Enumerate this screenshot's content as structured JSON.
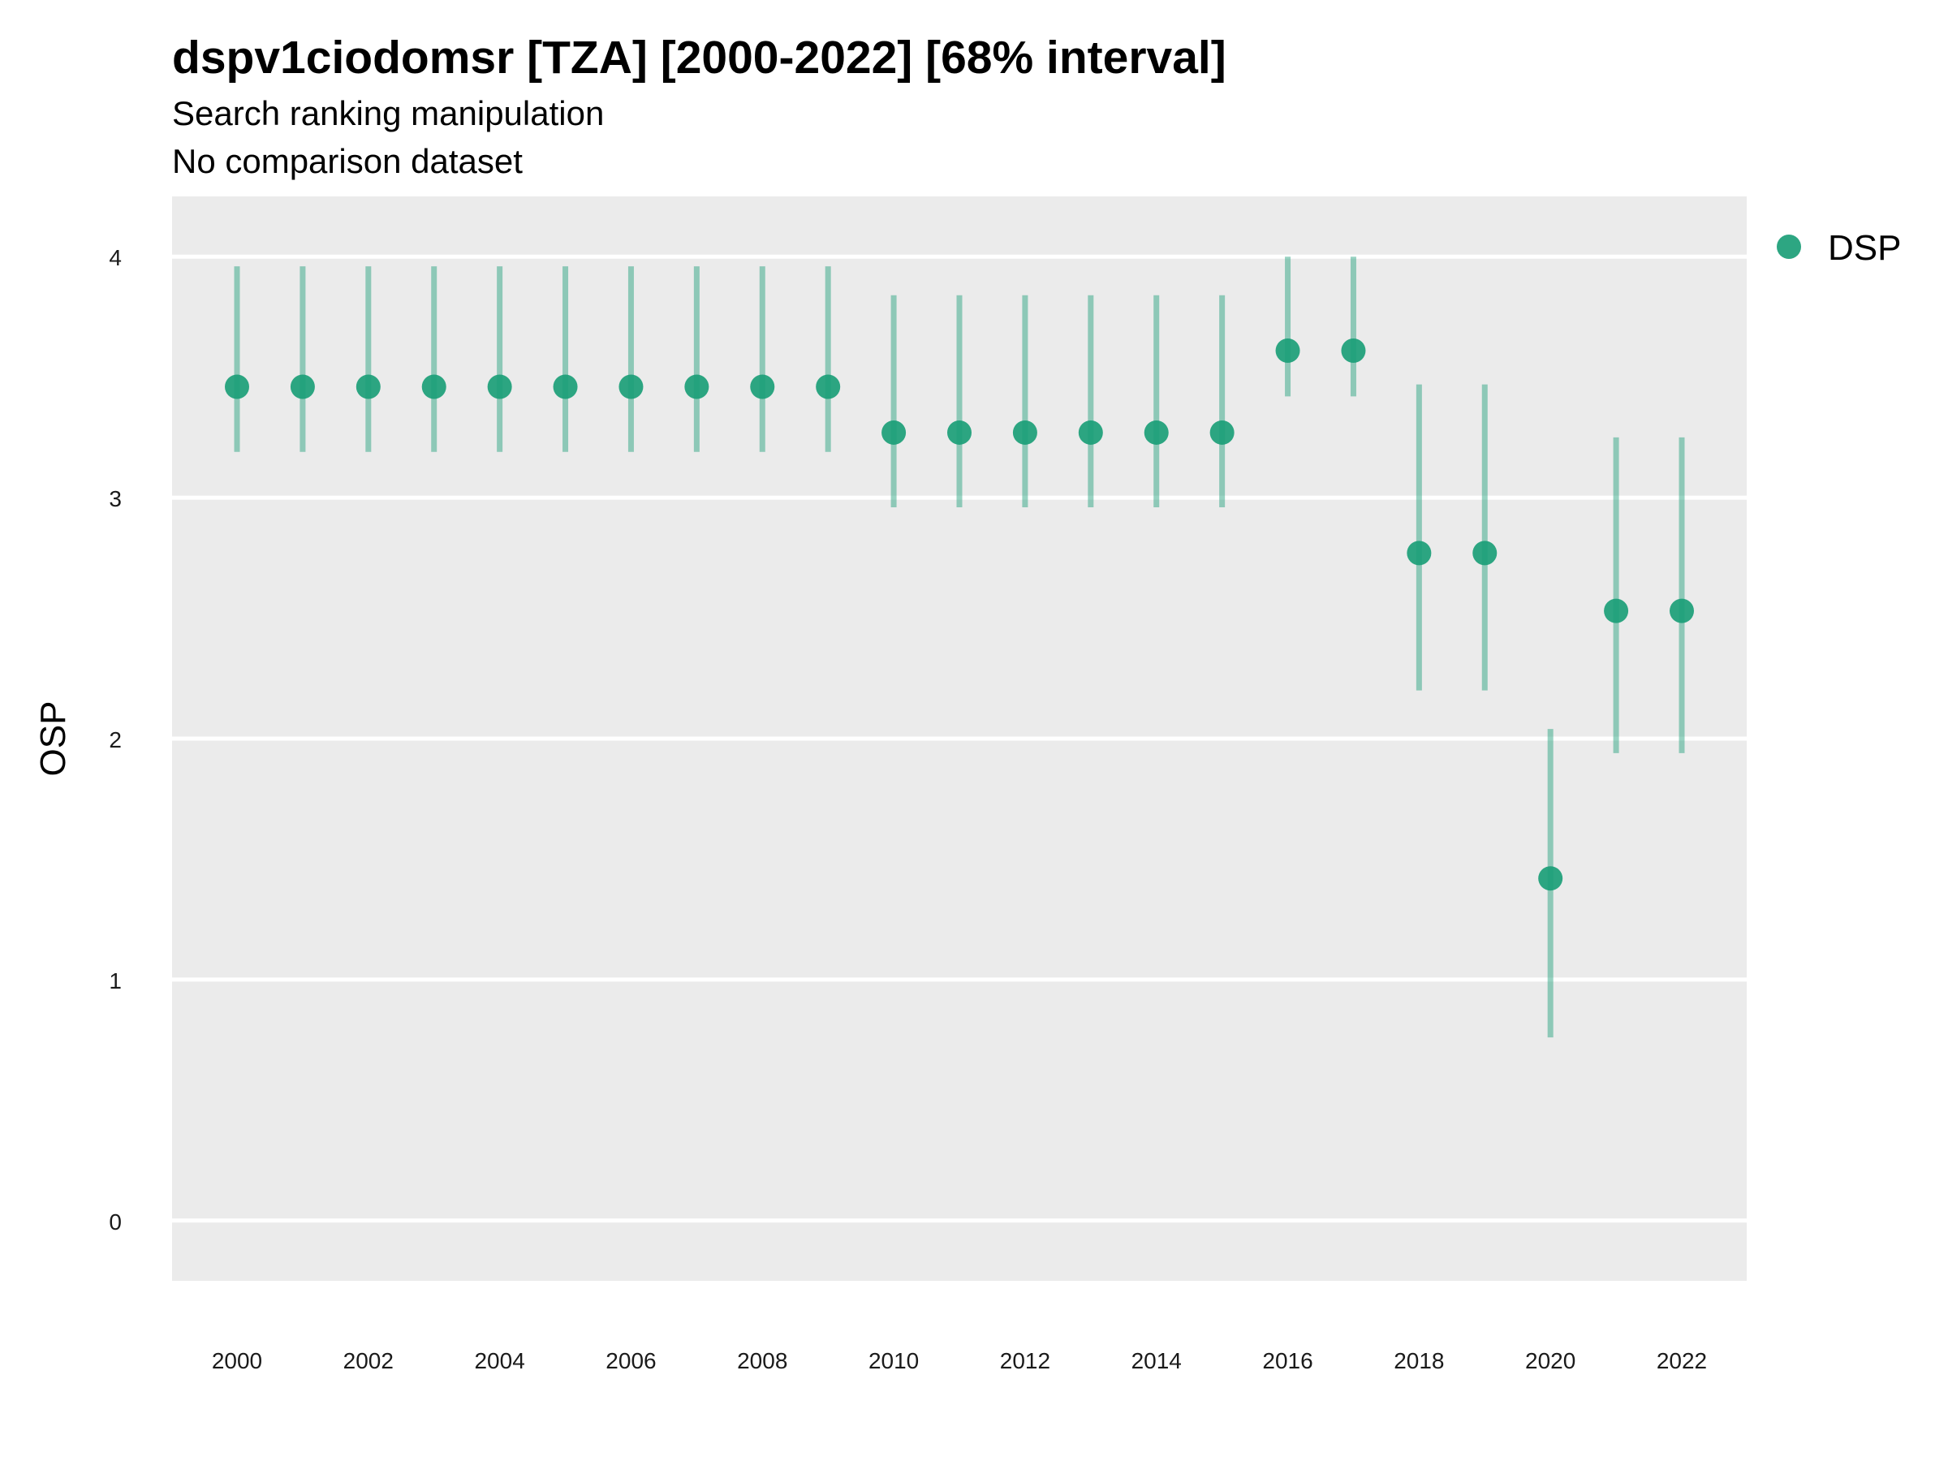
{
  "chart_data": {
    "type": "scatter",
    "title": "dspv1ciodomsr [TZA] [2000-2022] [68% interval]",
    "subtitle": "Search ranking manipulation",
    "caption": "No comparison dataset",
    "xlabel": "",
    "ylabel": "OSP",
    "x_ticks": [
      "2000",
      "2002",
      "2004",
      "2006",
      "2008",
      "2010",
      "2012",
      "2014",
      "2016",
      "2018",
      "2020",
      "2022"
    ],
    "y_ticks": [
      "0",
      "1",
      "2",
      "3",
      "4"
    ],
    "xlim": [
      2000,
      2022
    ],
    "ylim": [
      -0.25,
      4.25
    ],
    "grid": true,
    "legend_position": "right",
    "series": [
      {
        "name": "DSP",
        "color": "#1b9e77",
        "x": [
          2000,
          2001,
          2002,
          2003,
          2004,
          2005,
          2006,
          2007,
          2008,
          2009,
          2010,
          2011,
          2012,
          2013,
          2014,
          2015,
          2016,
          2017,
          2018,
          2019,
          2020,
          2021,
          2022
        ],
        "y": [
          3.46,
          3.46,
          3.46,
          3.46,
          3.46,
          3.46,
          3.46,
          3.46,
          3.46,
          3.46,
          3.27,
          3.27,
          3.27,
          3.27,
          3.27,
          3.27,
          3.61,
          3.61,
          2.77,
          2.77,
          1.42,
          2.53,
          2.53
        ],
        "lower": [
          3.19,
          3.19,
          3.19,
          3.19,
          3.19,
          3.19,
          3.19,
          3.19,
          3.19,
          3.19,
          2.96,
          2.96,
          2.96,
          2.96,
          2.96,
          2.96,
          3.42,
          3.42,
          2.2,
          2.2,
          0.76,
          1.94,
          1.94
        ],
        "upper": [
          3.96,
          3.96,
          3.96,
          3.96,
          3.96,
          3.96,
          3.96,
          3.96,
          3.96,
          3.96,
          3.84,
          3.84,
          3.84,
          3.84,
          3.84,
          3.84,
          4.0,
          4.0,
          3.47,
          3.47,
          2.04,
          3.25,
          3.25
        ]
      }
    ]
  }
}
